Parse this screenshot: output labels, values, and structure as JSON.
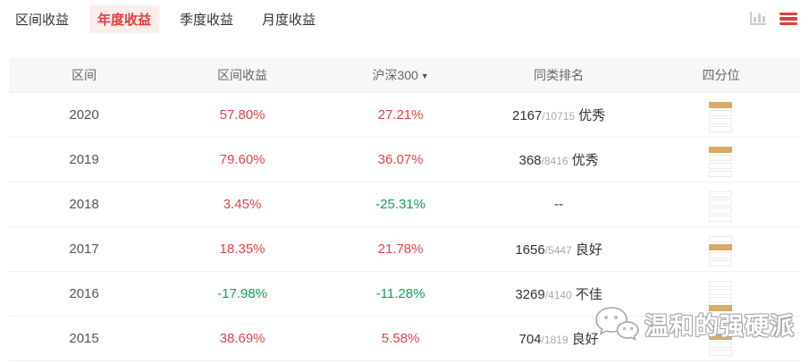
{
  "tabs": [
    {
      "label": "区间收益",
      "active": false
    },
    {
      "label": "年度收益",
      "active": true
    },
    {
      "label": "季度收益",
      "active": false
    },
    {
      "label": "月度收益",
      "active": false
    }
  ],
  "table": {
    "headers": {
      "period": "区间",
      "interval_return": "区间收益",
      "benchmark": "沪深300",
      "benchmark_arrow": "▼",
      "peer_rank": "同类排名",
      "quartile": "四分位"
    },
    "rows": [
      {
        "period": "2020",
        "interval_return": "57.80%",
        "interval_dir": "up",
        "benchmark": "27.21%",
        "benchmark_dir": "up",
        "rank_num": "2167",
        "rank_total": "/10715",
        "rank_label": "优秀",
        "quartile": 1
      },
      {
        "period": "2019",
        "interval_return": "79.60%",
        "interval_dir": "up",
        "benchmark": "36.07%",
        "benchmark_dir": "up",
        "rank_num": "368",
        "rank_total": "/8416",
        "rank_label": "优秀",
        "quartile": 1
      },
      {
        "period": "2018",
        "interval_return": "3.45%",
        "interval_dir": "up",
        "benchmark": "-25.31%",
        "benchmark_dir": "down",
        "rank_num": "--",
        "rank_total": "",
        "rank_label": "",
        "quartile": 0
      },
      {
        "period": "2017",
        "interval_return": "18.35%",
        "interval_dir": "up",
        "benchmark": "21.78%",
        "benchmark_dir": "up",
        "rank_num": "1656",
        "rank_total": "/5447",
        "rank_label": "良好",
        "quartile": 2
      },
      {
        "period": "2016",
        "interval_return": "-17.98%",
        "interval_dir": "down",
        "benchmark": "-11.28%",
        "benchmark_dir": "down",
        "rank_num": "3269",
        "rank_total": "/4140",
        "rank_label": "不佳",
        "quartile": 4
      },
      {
        "period": "2015",
        "interval_return": "38.69%",
        "interval_dir": "up",
        "benchmark": "5.58%",
        "benchmark_dir": "up",
        "rank_num": "704",
        "rank_total": "/1819",
        "rank_label": "良好",
        "quartile": 2
      }
    ]
  },
  "colors": {
    "up": "#e14545",
    "down": "#0da156",
    "accent_red": "#e23c3c",
    "quartile_fill": "#d8ab66"
  },
  "watermark": {
    "text": "温和的强硬派"
  }
}
